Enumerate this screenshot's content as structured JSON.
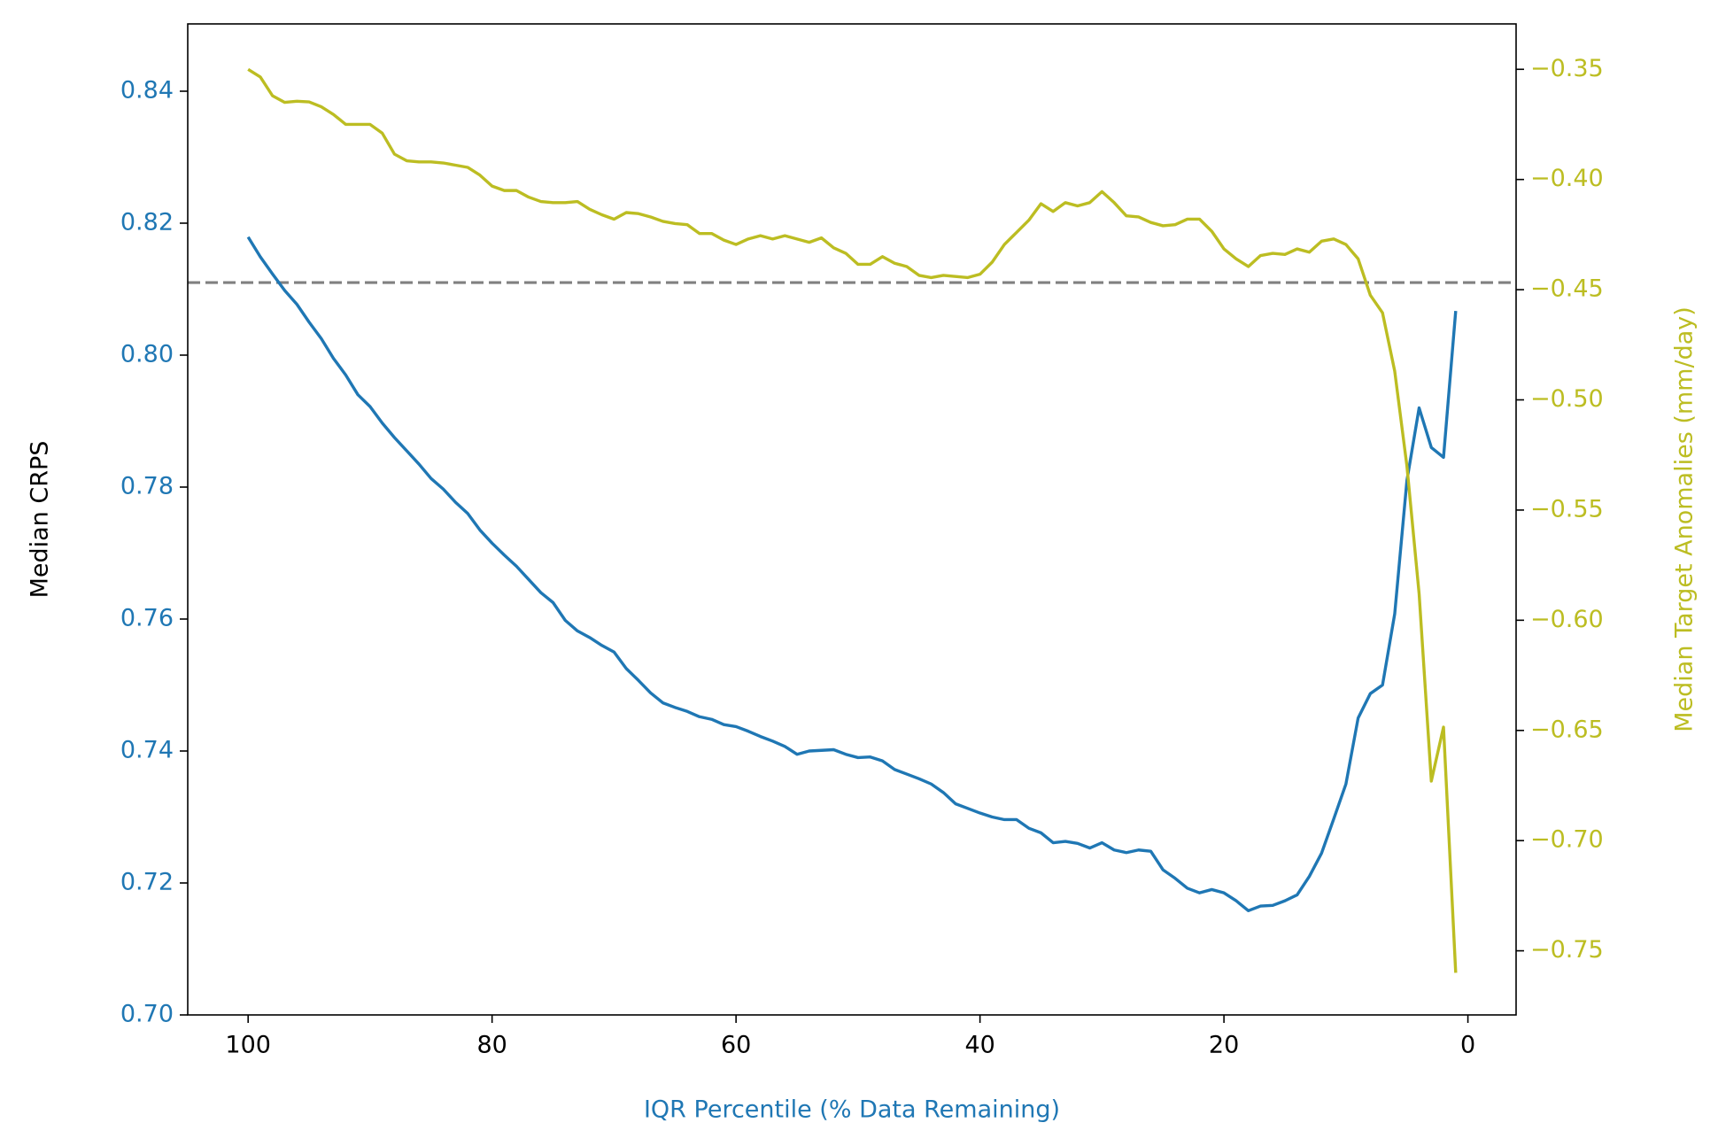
{
  "chart_data": {
    "type": "line",
    "xlabel": "IQR Percentile (% Data Remaining)",
    "ylabel": "Median CRPS",
    "y2label": "Median Target Anomalies (mm/day)",
    "xlabel_color": "#1f77b4",
    "ylabel_color": "#000000",
    "y2label_color": "#bcbd22",
    "xlim": [
      104.95,
      -3.95
    ],
    "xticks": [
      100,
      80,
      60,
      40,
      20,
      0
    ],
    "ylim": [
      0.7,
      0.8502
    ],
    "yticks": [
      {
        "value": 0.7,
        "label": "0.70"
      },
      0.72,
      0.74,
      0.76,
      0.78,
      {
        "value": 0.8,
        "label": "0.80"
      },
      0.82,
      0.84
    ],
    "y2lim": [
      -0.7791,
      -0.3294
    ],
    "y2ticks": [
      {
        "value": -0.35,
        "label": "−0.35"
      },
      {
        "value": -0.4,
        "label": "−0.40"
      },
      {
        "value": -0.45,
        "label": "−0.45"
      },
      {
        "value": -0.5,
        "label": "−0.50"
      },
      {
        "value": -0.55,
        "label": "−0.55"
      },
      {
        "value": -0.6,
        "label": "−0.60"
      },
      {
        "value": -0.65,
        "label": "−0.65"
      },
      {
        "value": -0.7,
        "label": "−0.70"
      },
      {
        "value": -0.75,
        "label": "−0.75"
      }
    ],
    "hline": {
      "value": 0.811,
      "color": "#808080",
      "dashed": true
    },
    "x": [
      100,
      99,
      98,
      97,
      96,
      95,
      94,
      93,
      92,
      91,
      90,
      89,
      88,
      87,
      86,
      85,
      84,
      83,
      82,
      81,
      80,
      79,
      78,
      77,
      76,
      75,
      74,
      73,
      72,
      71,
      70,
      69,
      68,
      67,
      66,
      65,
      64,
      63,
      62,
      61,
      60,
      59,
      58,
      57,
      56,
      55,
      54,
      53,
      52,
      51,
      50,
      49,
      48,
      47,
      46,
      45,
      44,
      43,
      42,
      41,
      40,
      39,
      38,
      37,
      36,
      35,
      34,
      33,
      32,
      31,
      30,
      29,
      28,
      27,
      26,
      25,
      24,
      23,
      22,
      21,
      20,
      19,
      18,
      17,
      16,
      15,
      14,
      13,
      12,
      11,
      10,
      9,
      8,
      7,
      6,
      5,
      4,
      3,
      2,
      1
    ],
    "series": [
      {
        "color": "#1f77b4",
        "axis": "y",
        "values": [
          0.8179,
          0.8149,
          0.8123,
          0.8098,
          0.8077,
          0.805,
          0.8025,
          0.7995,
          0.797,
          0.794,
          0.7922,
          0.7897,
          0.7875,
          0.7855,
          0.7835,
          0.7813,
          0.7797,
          0.7777,
          0.776,
          0.7735,
          0.7715,
          0.7697,
          0.768,
          0.766,
          0.764,
          0.7625,
          0.7598,
          0.7582,
          0.7572,
          0.756,
          0.755,
          0.7525,
          0.7507,
          0.7488,
          0.7473,
          0.7466,
          0.746,
          0.7452,
          0.7448,
          0.744,
          0.7437,
          0.743,
          0.7422,
          0.7415,
          0.7407,
          0.7395,
          0.74,
          0.7401,
          0.7402,
          0.7395,
          0.739,
          0.7391,
          0.7385,
          0.7372,
          0.7365,
          0.7358,
          0.735,
          0.7337,
          0.732,
          0.7313,
          0.7306,
          0.73,
          0.7296,
          0.7296,
          0.7283,
          0.7276,
          0.7261,
          0.7263,
          0.726,
          0.7253,
          0.7261,
          0.725,
          0.7246,
          0.725,
          0.7248,
          0.722,
          0.7207,
          0.7192,
          0.7185,
          0.719,
          0.7185,
          0.7173,
          0.7158,
          0.7165,
          0.7166,
          0.7173,
          0.7182,
          0.721,
          0.7245,
          0.7297,
          0.735,
          0.745,
          0.7487,
          0.75,
          0.7608,
          0.781,
          0.792,
          0.786,
          0.7845,
          0.8067
        ]
      },
      {
        "color": "#bcbd22",
        "axis": "y2",
        "values": [
          -0.35,
          -0.3535,
          -0.362,
          -0.365,
          -0.3645,
          -0.3648,
          -0.367,
          -0.3705,
          -0.375,
          -0.375,
          -0.375,
          -0.379,
          -0.3885,
          -0.3915,
          -0.392,
          -0.392,
          -0.3925,
          -0.3935,
          -0.3945,
          -0.398,
          -0.403,
          -0.405,
          -0.405,
          -0.408,
          -0.41,
          -0.4105,
          -0.4105,
          -0.41,
          -0.4135,
          -0.416,
          -0.418,
          -0.415,
          -0.4155,
          -0.417,
          -0.419,
          -0.42,
          -0.4205,
          -0.4245,
          -0.4245,
          -0.4275,
          -0.4295,
          -0.427,
          -0.4255,
          -0.427,
          -0.4255,
          -0.427,
          -0.4285,
          -0.4265,
          -0.431,
          -0.4335,
          -0.4385,
          -0.4385,
          -0.435,
          -0.438,
          -0.4395,
          -0.4435,
          -0.4445,
          -0.4435,
          -0.444,
          -0.4445,
          -0.443,
          -0.4375,
          -0.4295,
          -0.424,
          -0.4185,
          -0.411,
          -0.4145,
          -0.4105,
          -0.412,
          -0.4105,
          -0.4055,
          -0.4105,
          -0.4165,
          -0.417,
          -0.4195,
          -0.421,
          -0.4205,
          -0.418,
          -0.418,
          -0.4235,
          -0.4315,
          -0.436,
          -0.4395,
          -0.4345,
          -0.4335,
          -0.434,
          -0.4315,
          -0.433,
          -0.428,
          -0.427,
          -0.4295,
          -0.436,
          -0.4525,
          -0.4605,
          -0.487,
          -0.53,
          -0.588,
          -0.673,
          -0.6485,
          -0.76
        ]
      }
    ]
  }
}
